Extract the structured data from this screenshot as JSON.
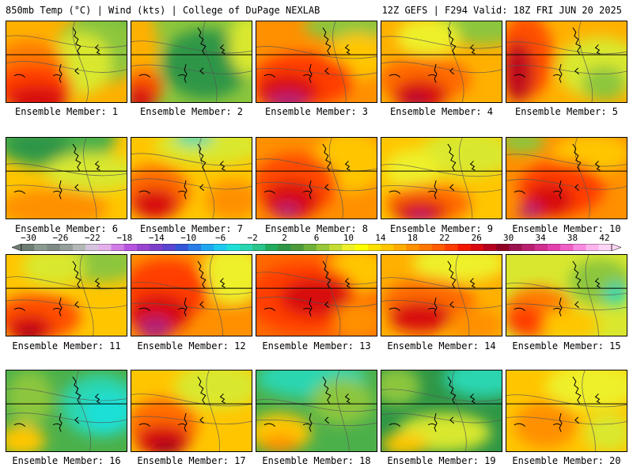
{
  "header": {
    "left_text": "850mb Temp (°C) | Wind (kts) | College of DuPage NEXLAB",
    "right_text": "12Z GEFS | F294 Valid: 18Z FRI JUN 20 2025"
  },
  "colorbar": {
    "tick_labels": [
      "−30",
      "−26",
      "−22",
      "−18",
      "−14",
      "−10",
      "−6",
      "−2",
      "2",
      "6",
      "10",
      "14",
      "18",
      "22",
      "26",
      "30",
      "34",
      "38",
      "42"
    ],
    "colors": [
      "#6e7d73",
      "#8b9a90",
      "#7e8a84",
      "#969e9a",
      "#b3b8b6",
      "#d6c3df",
      "#e3b0ec",
      "#d07ce6",
      "#b855e0",
      "#9a45cf",
      "#7c40c8",
      "#5a44d0",
      "#3556d8",
      "#2a7de6",
      "#1fa8ef",
      "#1ec9f0",
      "#1ee0d8",
      "#2ad6b0",
      "#2bc48a",
      "#22ab5d",
      "#2e9646",
      "#4d9a3c",
      "#6fb138",
      "#99c73a",
      "#c6dc34",
      "#eef02a",
      "#ffff00",
      "#ffe100",
      "#ffc600",
      "#ffac00",
      "#ff9000",
      "#ff7600",
      "#ff5c00",
      "#ff3c00",
      "#f21800",
      "#d80a10",
      "#b5001e",
      "#8f0024",
      "#9c1250",
      "#b8206f",
      "#cf2f8e",
      "#e33fae",
      "#ef5fc6",
      "#f78be0",
      "#fcb4ee",
      "#ffd5f5"
    ]
  },
  "panels": [
    {
      "label": "Ensemble Member: 1",
      "base": "#ffb000",
      "blobs": [
        {
          "c": "#4cb04a",
          "x": 160,
          "y": 0,
          "rx": 70,
          "ry": 40
        },
        {
          "c": "#8cc63c",
          "x": 120,
          "y": 35,
          "rx": 55,
          "ry": 45
        },
        {
          "c": "#d9e82e",
          "x": 95,
          "y": 55,
          "rx": 40,
          "ry": 40
        },
        {
          "c": "#ff7a00",
          "x": 30,
          "y": 55,
          "rx": 45,
          "ry": 30
        },
        {
          "c": "#ff3c00",
          "x": 35,
          "y": 85,
          "rx": 50,
          "ry": 30
        },
        {
          "c": "#d80a10",
          "x": 40,
          "y": 100,
          "rx": 40,
          "ry": 18
        }
      ]
    },
    {
      "label": "Ensemble Member: 2",
      "base": "#8cc63c",
      "blobs": [
        {
          "c": "#2e9646",
          "x": 95,
          "y": 55,
          "rx": 55,
          "ry": 45
        },
        {
          "c": "#ffb000",
          "x": 10,
          "y": 40,
          "rx": 25,
          "ry": 60
        },
        {
          "c": "#ff5a00",
          "x": 15,
          "y": 85,
          "rx": 25,
          "ry": 25
        },
        {
          "c": "#d80a10",
          "x": 12,
          "y": 100,
          "rx": 18,
          "ry": 18
        },
        {
          "c": "#d9e82e",
          "x": 150,
          "y": 30,
          "rx": 25,
          "ry": 40
        }
      ]
    },
    {
      "label": "Ensemble Member: 3",
      "base": "#ff9000",
      "blobs": [
        {
          "c": "#8cc63c",
          "x": 120,
          "y": 5,
          "rx": 60,
          "ry": 20
        },
        {
          "c": "#ffc600",
          "x": 130,
          "y": 45,
          "rx": 40,
          "ry": 30
        },
        {
          "c": "#ff3c00",
          "x": 60,
          "y": 75,
          "rx": 65,
          "ry": 35
        },
        {
          "c": "#d80a10",
          "x": 40,
          "y": 90,
          "rx": 40,
          "ry": 22
        },
        {
          "c": "#b0207a",
          "x": 40,
          "y": 104,
          "rx": 25,
          "ry": 12
        }
      ]
    },
    {
      "label": "Ensemble Member: 4",
      "base": "#ffb000",
      "blobs": [
        {
          "c": "#8cc63c",
          "x": 130,
          "y": 0,
          "rx": 60,
          "ry": 30
        },
        {
          "c": "#eef02a",
          "x": 60,
          "y": 20,
          "rx": 40,
          "ry": 25
        },
        {
          "c": "#ff6a00",
          "x": 55,
          "y": 75,
          "rx": 60,
          "ry": 30
        },
        {
          "c": "#d80a10",
          "x": 50,
          "y": 95,
          "rx": 35,
          "ry": 20
        },
        {
          "c": "#a01040",
          "x": 45,
          "y": 104,
          "rx": 15,
          "ry": 8
        }
      ]
    },
    {
      "label": "Ensemble Member: 5",
      "base": "#ffb000",
      "blobs": [
        {
          "c": "#d9e82e",
          "x": 120,
          "y": 60,
          "rx": 55,
          "ry": 40
        },
        {
          "c": "#8cc63c",
          "x": 125,
          "y": 80,
          "rx": 28,
          "ry": 22
        },
        {
          "c": "#ff5000",
          "x": 25,
          "y": 45,
          "rx": 35,
          "ry": 55
        },
        {
          "c": "#c0101a",
          "x": 15,
          "y": 65,
          "rx": 20,
          "ry": 40
        }
      ]
    },
    {
      "label": "Ensemble Member: 6",
      "base": "#ffc600",
      "blobs": [
        {
          "c": "#4cb04a",
          "x": 60,
          "y": 0,
          "rx": 80,
          "ry": 40
        },
        {
          "c": "#2e9646",
          "x": 40,
          "y": 10,
          "rx": 40,
          "ry": 20
        },
        {
          "c": "#d9e82e",
          "x": 110,
          "y": 45,
          "rx": 60,
          "ry": 25
        },
        {
          "c": "#ff9000",
          "x": 60,
          "y": 90,
          "rx": 70,
          "ry": 25
        }
      ]
    },
    {
      "label": "Ensemble Member: 7",
      "base": "#ffc600",
      "blobs": [
        {
          "c": "#d9e82e",
          "x": 100,
          "y": 10,
          "rx": 70,
          "ry": 25
        },
        {
          "c": "#2ad6b0",
          "x": 80,
          "y": 0,
          "rx": 25,
          "ry": 10
        },
        {
          "c": "#ff6a00",
          "x": 30,
          "y": 70,
          "rx": 45,
          "ry": 35
        },
        {
          "c": "#d80a10",
          "x": 30,
          "y": 85,
          "rx": 30,
          "ry": 20
        },
        {
          "c": "#ff9000",
          "x": 130,
          "y": 80,
          "rx": 35,
          "ry": 25
        }
      ]
    },
    {
      "label": "Ensemble Member: 8",
      "base": "#ff9000",
      "blobs": [
        {
          "c": "#ffc600",
          "x": 120,
          "y": 30,
          "rx": 45,
          "ry": 40
        },
        {
          "c": "#ff4a00",
          "x": 50,
          "y": 60,
          "rx": 55,
          "ry": 40
        },
        {
          "c": "#d80a10",
          "x": 45,
          "y": 80,
          "rx": 35,
          "ry": 25
        },
        {
          "c": "#b0207a",
          "x": 40,
          "y": 95,
          "rx": 15,
          "ry": 10
        }
      ]
    },
    {
      "label": "Ensemble Member: 9",
      "base": "#ffc600",
      "blobs": [
        {
          "c": "#d9e82e",
          "x": 110,
          "y": 20,
          "rx": 60,
          "ry": 30
        },
        {
          "c": "#eef02a",
          "x": 40,
          "y": 40,
          "rx": 35,
          "ry": 25
        },
        {
          "c": "#ff6a00",
          "x": 60,
          "y": 85,
          "rx": 55,
          "ry": 25
        },
        {
          "c": "#d80a10",
          "x": 50,
          "y": 95,
          "rx": 35,
          "ry": 15
        },
        {
          "c": "#b0207a",
          "x": 50,
          "y": 104,
          "rx": 15,
          "ry": 8
        }
      ]
    },
    {
      "label": "Ensemble Member: 10",
      "base": "#ff9000",
      "blobs": [
        {
          "c": "#8cc63c",
          "x": 20,
          "y": 5,
          "rx": 30,
          "ry": 15
        },
        {
          "c": "#ffc600",
          "x": 110,
          "y": 20,
          "rx": 50,
          "ry": 25
        },
        {
          "c": "#ff3c00",
          "x": 70,
          "y": 65,
          "rx": 55,
          "ry": 35
        },
        {
          "c": "#d80a10",
          "x": 55,
          "y": 80,
          "rx": 30,
          "ry": 22
        },
        {
          "c": "#b0207a",
          "x": 30,
          "y": 95,
          "rx": 15,
          "ry": 10
        }
      ]
    },
    {
      "label": "Ensemble Member: 11",
      "base": "#ffc600",
      "blobs": [
        {
          "c": "#8cc63c",
          "x": 120,
          "y": 10,
          "rx": 55,
          "ry": 25
        },
        {
          "c": "#d9e82e",
          "x": 60,
          "y": 15,
          "rx": 40,
          "ry": 25
        },
        {
          "c": "#ff5000",
          "x": 40,
          "y": 80,
          "rx": 55,
          "ry": 30
        },
        {
          "c": "#d80a10",
          "x": 30,
          "y": 95,
          "rx": 30,
          "ry": 18
        },
        {
          "c": "#8f0024",
          "x": 30,
          "y": 104,
          "rx": 15,
          "ry": 8
        }
      ]
    },
    {
      "label": "Ensemble Member: 12",
      "base": "#ff9000",
      "blobs": [
        {
          "c": "#eef02a",
          "x": 130,
          "y": 25,
          "rx": 40,
          "ry": 40
        },
        {
          "c": "#ff3c00",
          "x": 45,
          "y": 45,
          "rx": 55,
          "ry": 40
        },
        {
          "c": "#d80a10",
          "x": 35,
          "y": 75,
          "rx": 40,
          "ry": 25
        },
        {
          "c": "#b0207a",
          "x": 30,
          "y": 95,
          "rx": 22,
          "ry": 15
        }
      ]
    },
    {
      "label": "Ensemble Member: 13",
      "base": "#ff6a00",
      "blobs": [
        {
          "c": "#ffc600",
          "x": 130,
          "y": 20,
          "rx": 40,
          "ry": 30
        },
        {
          "c": "#ff3c00",
          "x": 60,
          "y": 55,
          "rx": 70,
          "ry": 45
        },
        {
          "c": "#d80a10",
          "x": 75,
          "y": 55,
          "rx": 45,
          "ry": 25
        },
        {
          "c": "#ff9000",
          "x": 130,
          "y": 85,
          "rx": 30,
          "ry": 25
        }
      ]
    },
    {
      "label": "Ensemble Member: 14",
      "base": "#ffb000",
      "blobs": [
        {
          "c": "#eef02a",
          "x": 100,
          "y": 10,
          "rx": 60,
          "ry": 25
        },
        {
          "c": "#ff6a00",
          "x": 60,
          "y": 60,
          "rx": 60,
          "ry": 30
        },
        {
          "c": "#d80a10",
          "x": 50,
          "y": 80,
          "rx": 40,
          "ry": 20
        },
        {
          "c": "#ff9000",
          "x": 120,
          "y": 90,
          "rx": 35,
          "ry": 20
        }
      ]
    },
    {
      "label": "Ensemble Member: 15",
      "base": "#d9e82e",
      "blobs": [
        {
          "c": "#8cc63c",
          "x": 120,
          "y": 35,
          "rx": 40,
          "ry": 30
        },
        {
          "c": "#2ad6b0",
          "x": 140,
          "y": 50,
          "rx": 15,
          "ry": 15
        },
        {
          "c": "#ff7a00",
          "x": 40,
          "y": 75,
          "rx": 45,
          "ry": 35
        },
        {
          "c": "#ffc600",
          "x": 80,
          "y": 90,
          "rx": 40,
          "ry": 20
        },
        {
          "c": "#ff3c00",
          "x": 25,
          "y": 85,
          "rx": 25,
          "ry": 20
        }
      ]
    },
    {
      "label": "Ensemble Member: 16",
      "base": "#4cb04a",
      "blobs": [
        {
          "c": "#2ad6b0",
          "x": 120,
          "y": 45,
          "rx": 50,
          "ry": 40
        },
        {
          "c": "#1ee0d8",
          "x": 130,
          "y": 55,
          "rx": 30,
          "ry": 25
        },
        {
          "c": "#8cc63c",
          "x": 30,
          "y": 35,
          "rx": 30,
          "ry": 35
        },
        {
          "c": "#ffc600",
          "x": 20,
          "y": 90,
          "rx": 30,
          "ry": 20
        }
      ]
    },
    {
      "label": "Ensemble Member: 17",
      "base": "#ffc600",
      "blobs": [
        {
          "c": "#d9e82e",
          "x": 110,
          "y": 20,
          "rx": 55,
          "ry": 30
        },
        {
          "c": "#ff6a00",
          "x": 40,
          "y": 70,
          "rx": 45,
          "ry": 35
        },
        {
          "c": "#d80a10",
          "x": 40,
          "y": 90,
          "rx": 35,
          "ry": 20
        },
        {
          "c": "#8f0024",
          "x": 45,
          "y": 100,
          "rx": 20,
          "ry": 8
        }
      ]
    },
    {
      "label": "Ensemble Member: 18",
      "base": "#4cb04a",
      "blobs": [
        {
          "c": "#2ad6b0",
          "x": 70,
          "y": 10,
          "rx": 70,
          "ry": 25
        },
        {
          "c": "#8cc63c",
          "x": 110,
          "y": 40,
          "rx": 40,
          "ry": 30
        },
        {
          "c": "#ffc600",
          "x": 30,
          "y": 80,
          "rx": 40,
          "ry": 25
        },
        {
          "c": "#ff9000",
          "x": 30,
          "y": 95,
          "rx": 25,
          "ry": 12
        }
      ]
    },
    {
      "label": "Ensemble Member: 19",
      "base": "#2e9646",
      "blobs": [
        {
          "c": "#2ad6b0",
          "x": 130,
          "y": 10,
          "rx": 50,
          "ry": 25
        },
        {
          "c": "#8cc63c",
          "x": 20,
          "y": 20,
          "rx": 30,
          "ry": 25
        },
        {
          "c": "#d9e82e",
          "x": 80,
          "y": 80,
          "rx": 60,
          "ry": 25
        },
        {
          "c": "#ffc600",
          "x": 30,
          "y": 95,
          "rx": 30,
          "ry": 15
        }
      ]
    },
    {
      "label": "Ensemble Member: 20",
      "base": "#ffc600",
      "blobs": [
        {
          "c": "#eef02a",
          "x": 110,
          "y": 20,
          "rx": 60,
          "ry": 30
        },
        {
          "c": "#ff9000",
          "x": 50,
          "y": 70,
          "rx": 40,
          "ry": 30
        },
        {
          "c": "#d9e82e",
          "x": 130,
          "y": 80,
          "rx": 30,
          "ry": 25
        }
      ]
    }
  ]
}
